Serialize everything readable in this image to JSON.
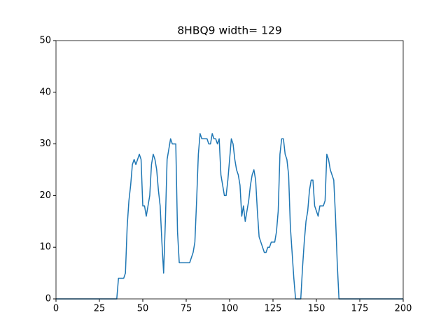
{
  "chart_data": {
    "type": "line",
    "title": "8HBQ9 width= 129",
    "x": [
      0,
      35,
      36,
      37,
      38,
      39,
      40,
      41,
      42,
      43,
      44,
      45,
      46,
      47,
      48,
      49,
      50,
      51,
      52,
      53,
      54,
      55,
      56,
      57,
      58,
      59,
      60,
      61,
      62,
      63,
      64,
      65,
      66,
      67,
      68,
      69,
      70,
      71,
      72,
      73,
      74,
      75,
      76,
      77,
      78,
      79,
      80,
      81,
      82,
      83,
      84,
      85,
      86,
      87,
      88,
      89,
      90,
      91,
      92,
      93,
      94,
      95,
      96,
      97,
      98,
      99,
      100,
      101,
      102,
      103,
      104,
      105,
      106,
      107,
      108,
      109,
      110,
      111,
      112,
      113,
      114,
      115,
      116,
      117,
      118,
      119,
      120,
      121,
      122,
      123,
      124,
      125,
      126,
      127,
      128,
      129,
      130,
      131,
      132,
      133,
      134,
      135,
      136,
      137,
      138,
      139,
      140,
      141,
      142,
      143,
      144,
      145,
      146,
      147,
      148,
      149,
      150,
      151,
      152,
      153,
      154,
      155,
      156,
      157,
      158,
      159,
      160,
      161,
      162,
      163,
      200
    ],
    "series": [
      {
        "color": "#1f77b4",
        "values": [
          0,
          0,
          4,
          4,
          4,
          4,
          5,
          14,
          19,
          22,
          26,
          27,
          26,
          27,
          28,
          27,
          18,
          18,
          16,
          18,
          20,
          26,
          28,
          27,
          25,
          21,
          18,
          11,
          5,
          15,
          27,
          29,
          31,
          30,
          30,
          30,
          13,
          7,
          7,
          7,
          7,
          7,
          7,
          7,
          8,
          9,
          11,
          19,
          28,
          32,
          31,
          31,
          31,
          31,
          30,
          30,
          32,
          31,
          31,
          30,
          31,
          24,
          22,
          20,
          20,
          23,
          27,
          31,
          30,
          27,
          25,
          24,
          22,
          16,
          18,
          15,
          17,
          19,
          22,
          24,
          25,
          23,
          17,
          12,
          11,
          10,
          9,
          9,
          10,
          10,
          11,
          11,
          11,
          13,
          17,
          28,
          31,
          31,
          28,
          27,
          24,
          14,
          9,
          4,
          0,
          0,
          0,
          0,
          6,
          11,
          15,
          17,
          21,
          23,
          23,
          18,
          17,
          16,
          18,
          18,
          18,
          19,
          28,
          27,
          25,
          24,
          23,
          16,
          7,
          0,
          0
        ]
      }
    ],
    "xlim": [
      0,
      200
    ],
    "xticks": [
      0,
      25,
      50,
      75,
      100,
      125,
      150,
      175,
      200
    ],
    "ylim": [
      0,
      50
    ],
    "yticks": [
      0,
      10,
      20,
      30,
      40,
      50
    ],
    "grid": false
  }
}
